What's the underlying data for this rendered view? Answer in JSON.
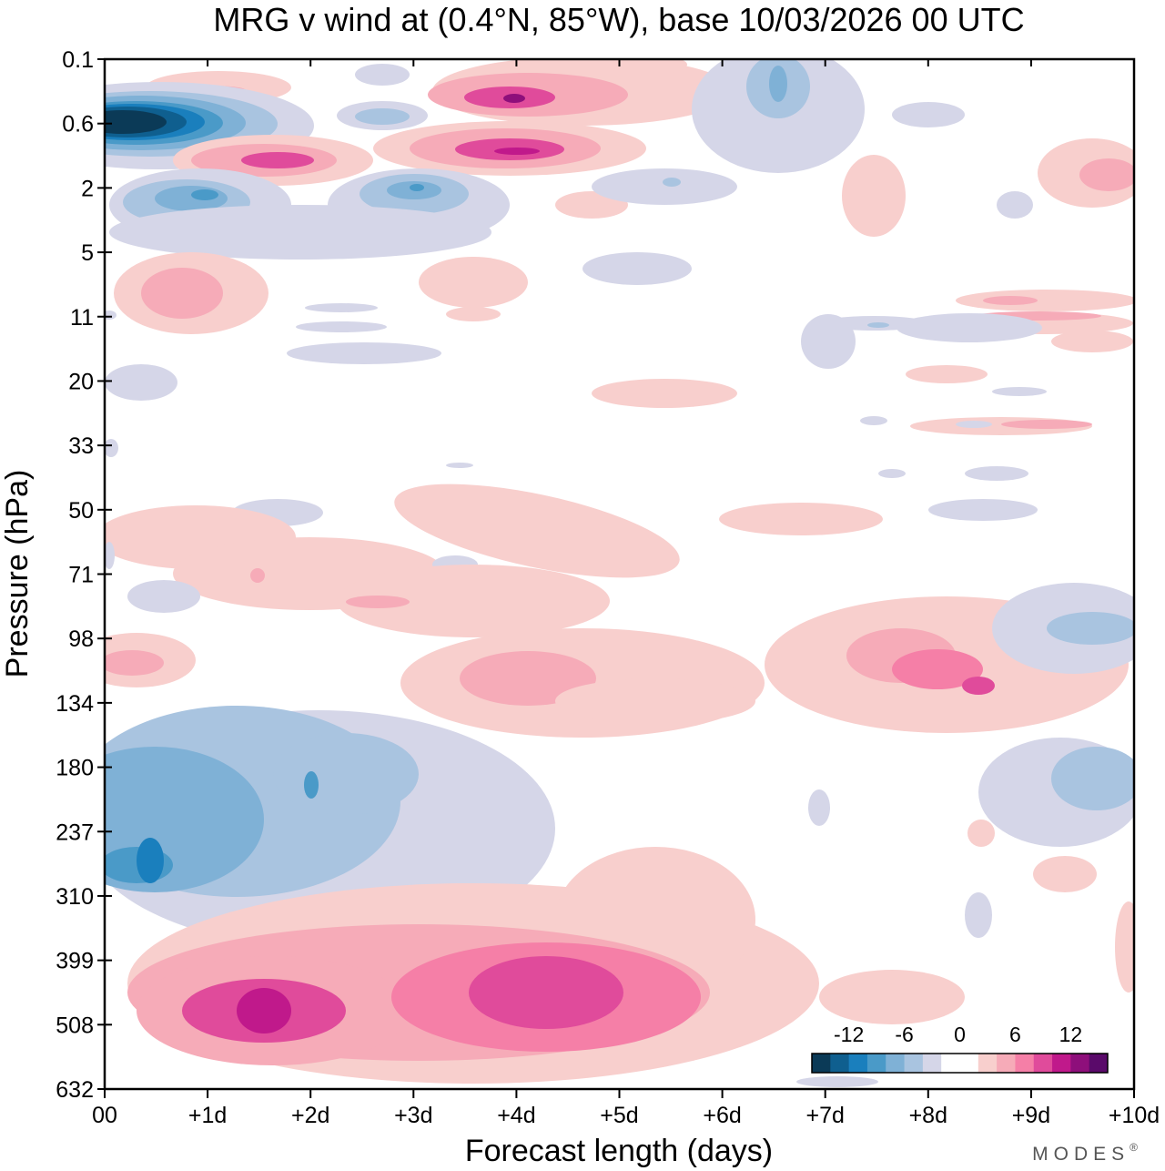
{
  "chart_data": {
    "type": "heatmap",
    "title": "MRG v wind at (0.4°N, 85°W),  base 10/03/2026  00 UTC",
    "xlabel": "Forecast length (days)",
    "ylabel": "Pressure (hPa)",
    "x_ticks": [
      "00",
      "+1d",
      "+2d",
      "+3d",
      "+4d",
      "+5d",
      "+6d",
      "+7d",
      "+8d",
      "+9d",
      "+10d"
    ],
    "y_ticks": [
      "0.1",
      "0.6",
      "2",
      "5",
      "11",
      "20",
      "33",
      "50",
      "71",
      "98",
      "134",
      "180",
      "237",
      "310",
      "399",
      "508",
      "632"
    ],
    "xlim_days": [
      0,
      10
    ],
    "y_axis": "pressure, log-like, top 0.1 hPa to bottom 632 hPa",
    "colorbar": {
      "tick_labels": [
        "-12",
        "-6",
        "0",
        "6",
        "12"
      ],
      "levels": [
        -16,
        -14,
        -12,
        -10,
        -8,
        -6,
        -4,
        -2,
        0,
        2,
        4,
        6,
        8,
        10,
        12,
        14,
        16
      ],
      "colors": [
        "#0b3a57",
        "#0f5f8f",
        "#1a7fbd",
        "#4a9ac8",
        "#7fb1d6",
        "#a9c4e0",
        "#d5d6e8",
        "#ffffff",
        "#ffffff",
        "#f8cfcd",
        "#f6abb8",
        "#f57fa7",
        "#e04b9b",
        "#c0198b",
        "#8e0f7b",
        "#5a0a6a"
      ]
    },
    "features": [
      {
        "name": "strong northerly core",
        "day": 0.5,
        "hPa": 0.6,
        "v": -14
      },
      {
        "name": "strat pos band",
        "day": 1.5,
        "hPa": 1.4,
        "v": 8
      },
      {
        "name": "strat pos band",
        "day": 4.0,
        "hPa": 1.2,
        "v": 10
      },
      {
        "name": "strat pos core",
        "day": 4.0,
        "hPa": 0.35,
        "v": 10
      },
      {
        "name": "tropospheric negative",
        "day": 0.5,
        "hPa": 260,
        "v": -10
      },
      {
        "name": "tropospheric negative",
        "day": 2.0,
        "hPa": 200,
        "v": -8
      },
      {
        "name": "lower-level positive",
        "day": 1.5,
        "hPa": 490,
        "v": 10
      },
      {
        "name": "lower-level positive",
        "day": 4.5,
        "hPa": 460,
        "v": 8
      },
      {
        "name": "UTLS positive",
        "day": 8.5,
        "hPa": 115,
        "v": 8
      },
      {
        "name": "UTLS positive",
        "day": 4.0,
        "hPa": 115,
        "v": 6
      }
    ]
  },
  "brand": "MODES",
  "brand_mark": "®"
}
